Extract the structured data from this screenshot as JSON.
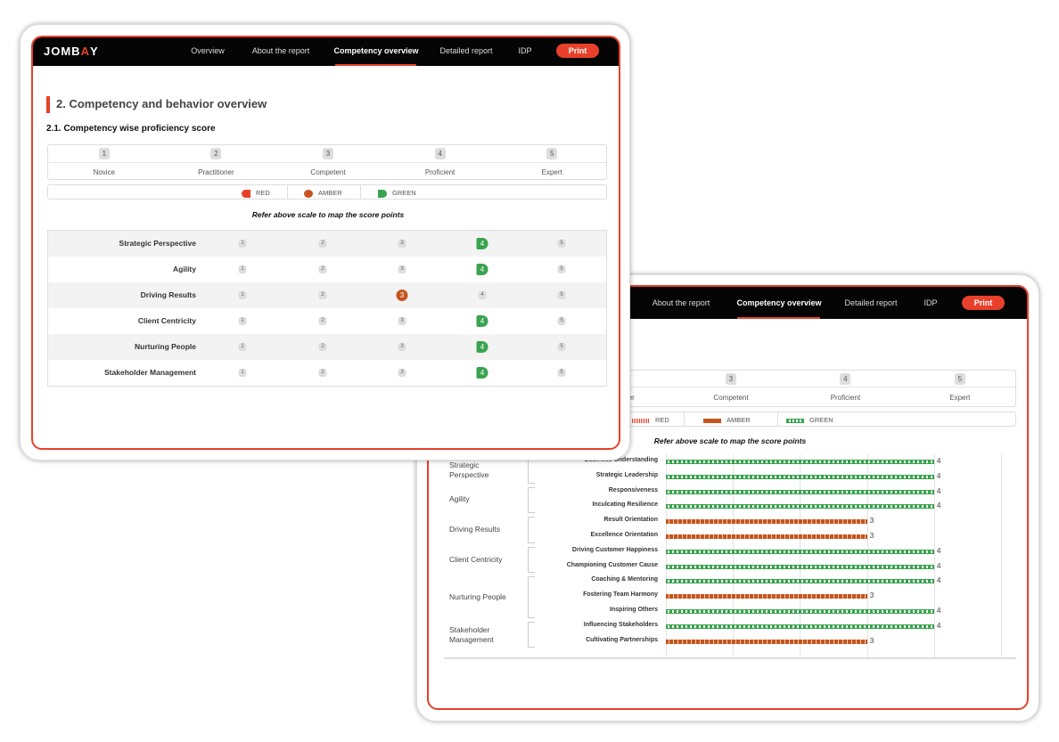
{
  "nav": {
    "logo": "JOMBAY",
    "items": [
      "Overview",
      "About the report",
      "Competency overview",
      "Detailed report",
      "IDP"
    ],
    "active": "Competency overview",
    "print": "Print"
  },
  "section_title": "2. Competency and behavior overview",
  "subsection_title": "2.1. Competency wise proficiency score",
  "scale": [
    {
      "num": "1",
      "label": "Novice"
    },
    {
      "num": "2",
      "label": "Practitioner"
    },
    {
      "num": "3",
      "label": "Competent"
    },
    {
      "num": "4",
      "label": "Proficient"
    },
    {
      "num": "5",
      "label": "Expert"
    }
  ],
  "legend": [
    {
      "label": "RED",
      "color": "#e8402a"
    },
    {
      "label": "AMBER",
      "color": "#c5541f"
    },
    {
      "label": "GREEN",
      "color": "#3aa34f"
    }
  ],
  "refer_text": "Refer above scale to map the score points",
  "competencies": [
    {
      "name": "Strategic Perspective",
      "score": 4,
      "status": "green"
    },
    {
      "name": "Agility",
      "score": 4,
      "status": "green"
    },
    {
      "name": "Driving Results",
      "score": 3,
      "status": "amber"
    },
    {
      "name": "Client Centricity",
      "score": 4,
      "status": "green"
    },
    {
      "name": "Nurturing People",
      "score": 4,
      "status": "green"
    },
    {
      "name": "Stakeholder Management",
      "score": 4,
      "status": "green"
    }
  ],
  "chart_data": {
    "type": "bar",
    "orientation": "horizontal",
    "xlim": [
      0,
      5
    ],
    "grid": true,
    "groups": [
      {
        "name": "Strategic Perspective",
        "items": [
          {
            "label": "Business Understanding",
            "value": 4,
            "status": "green"
          },
          {
            "label": "Strategic Leadership",
            "value": 4,
            "status": "green"
          }
        ]
      },
      {
        "name": "Agility",
        "items": [
          {
            "label": "Responsiveness",
            "value": 4,
            "status": "green"
          },
          {
            "label": "Inculcating Resilience",
            "value": 4,
            "status": "green"
          }
        ]
      },
      {
        "name": "Driving Results",
        "items": [
          {
            "label": "Result Orientation",
            "value": 3,
            "status": "amber"
          },
          {
            "label": "Excellence Orientation",
            "value": 3,
            "status": "amber"
          }
        ]
      },
      {
        "name": "Client Centricity",
        "items": [
          {
            "label": "Driving Customer Happiness",
            "value": 4,
            "status": "green"
          },
          {
            "label": "Championing Customer Cause",
            "value": 4,
            "status": "green"
          }
        ]
      },
      {
        "name": "Nurturing People",
        "items": [
          {
            "label": "Coaching & Mentoring",
            "value": 4,
            "status": "green"
          },
          {
            "label": "Fostering Team Harmony",
            "value": 3,
            "status": "amber"
          },
          {
            "label": "Inspiring Others",
            "value": 4,
            "status": "green"
          }
        ]
      },
      {
        "name": "Stakeholder Management",
        "items": [
          {
            "label": "Influencing Stakeholders",
            "value": 4,
            "status": "green"
          },
          {
            "label": "Cultivating Partnerships",
            "value": 3,
            "status": "amber"
          }
        ]
      }
    ]
  }
}
